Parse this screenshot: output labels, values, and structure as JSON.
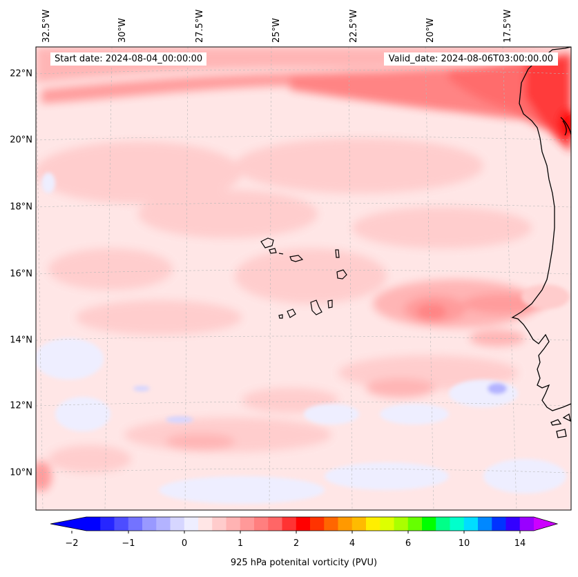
{
  "map": {
    "start_date": "Start date: 2024-08-04_00:00:00",
    "valid_date": "Valid_date: 2024-08-06T03:00:00.00",
    "lon_labels": [
      "32.5°W",
      "30°W",
      "27.5°W",
      "25°W",
      "22.5°W",
      "20°W",
      "17.5°W"
    ],
    "lat_labels": [
      "22°N",
      "20°N",
      "18°N",
      "16°N",
      "14°N",
      "12°N",
      "10°N"
    ],
    "coastline_color": "#000000",
    "gridline_style": "dashed light grey"
  },
  "colorbar": {
    "label": "925 hPa potenital vorticity (PVU)",
    "tick_labels": [
      "−2",
      "−1",
      "0",
      "1",
      "2",
      "4",
      "6",
      "10",
      "14"
    ],
    "colors": [
      "#0000ff",
      "#2626ff",
      "#4d4dff",
      "#7373ff",
      "#9999ff",
      "#b3b3ff",
      "#d6d6ff",
      "#eeeeff",
      "#ffe6e6",
      "#ffcccc",
      "#ffb3b3",
      "#ff9999",
      "#ff7f7f",
      "#ff6666",
      "#ff3333",
      "#ff0000",
      "#ff3300",
      "#ff6600",
      "#ff9900",
      "#ffbb00",
      "#ffee00",
      "#ddff00",
      "#aaff00",
      "#66ff00",
      "#00ff00",
      "#00ff88",
      "#00ffcc",
      "#00ddff",
      "#0088ff",
      "#0033ff",
      "#3300ff",
      "#9900ff"
    ],
    "extend_low_color": "#0000ff",
    "extend_high_color": "#cc00ff"
  }
}
